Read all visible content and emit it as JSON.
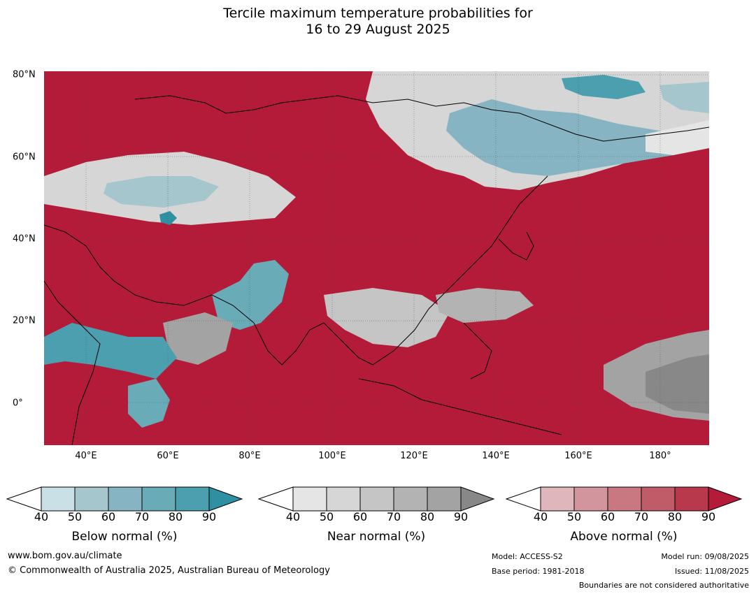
{
  "title": {
    "line1": "Tercile maximum temperature probabilities for",
    "line2": "16 to 29 August 2025"
  },
  "map": {
    "lat_labels": [
      "80°N",
      "60°N",
      "40°N",
      "20°N",
      "0°"
    ],
    "lon_labels": [
      "40°E",
      "60°E",
      "80°E",
      "100°E",
      "120°E",
      "140°E",
      "160°E",
      "180°"
    ],
    "colors": {
      "above_base": "#b31b38",
      "below": [
        "#c9e0e6",
        "#a6c6cd",
        "#87b4c2",
        "#6aabb8",
        "#4c9fae",
        "#2f8fa3"
      ],
      "near": [
        "#e5e5e5",
        "#d6d6d6",
        "#c5c5c5",
        "#b3b3b3",
        "#a3a3a3",
        "#888888"
      ],
      "above": [
        "#dfb6bc",
        "#d3959d",
        "#c97780",
        "#c05b68",
        "#b7394b",
        "#b31b38"
      ]
    }
  },
  "colorbars": [
    {
      "title": "Below normal (%)",
      "ticks": [
        "40",
        "50",
        "60",
        "70",
        "80",
        "90"
      ]
    },
    {
      "title": "Near normal (%)",
      "ticks": [
        "40",
        "50",
        "60",
        "70",
        "80",
        "90"
      ]
    },
    {
      "title": "Above normal (%)",
      "ticks": [
        "40",
        "50",
        "60",
        "70",
        "80",
        "90"
      ]
    }
  ],
  "footer": {
    "url": "www.bom.gov.au/climate",
    "copyright": "© Commonwealth of Australia 2025, Australian Bureau of Meteorology",
    "model": "Model: ACCESS-S2",
    "base_period": "Base period: 1981-2018",
    "model_run": "Model run: 09/08/2025",
    "issued": "Issued: 11/08/2025",
    "disclaimer": "Boundaries are not considered authoritative"
  }
}
